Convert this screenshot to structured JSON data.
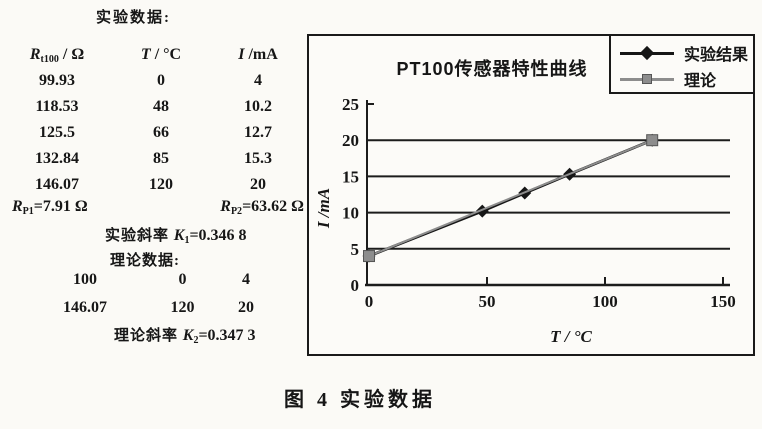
{
  "left_panel": {
    "heading": "实验数据:",
    "table": {
      "col1": {
        "base": "R",
        "sub": "t100",
        "suffix": " / Ω"
      },
      "col2": {
        "base": "T",
        "suffix": " / °C"
      },
      "col3": {
        "base": "I",
        "suffix": " /mA"
      },
      "rows": [
        [
          "99.93",
          "0",
          "4"
        ],
        [
          "118.53",
          "48",
          "10.2"
        ],
        [
          "125.5",
          "66",
          "12.7"
        ],
        [
          "132.84",
          "85",
          "15.3"
        ],
        [
          "146.07",
          "120",
          "20"
        ]
      ]
    },
    "rp1": {
      "base": "R",
      "sub": "P1",
      "value": "=7.91 Ω"
    },
    "rp2": {
      "base": "R",
      "sub": "P2",
      "value": "=63.62  Ω"
    },
    "exp_slope": {
      "label": "实验斜率",
      "k": "K",
      "sub": "1",
      "value": "=0.346 8"
    },
    "theory_heading": "理论数据:",
    "theory_rows": [
      [
        "100",
        "0",
        "4"
      ],
      [
        "146.07",
        "120",
        "20"
      ]
    ],
    "theory_slope": {
      "label": "理论斜率",
      "k": "K",
      "sub": "2",
      "value": "=0.347 3"
    }
  },
  "chart_data": {
    "type": "line",
    "title": "PT100传感器特性曲线",
    "xlabel": "T / °C",
    "ylabel": "I /mA",
    "xlim": [
      0,
      150
    ],
    "ylim": [
      0,
      25
    ],
    "xticks": [
      0,
      50,
      100,
      150
    ],
    "yticks": [
      0,
      5,
      10,
      15,
      20,
      25
    ],
    "grid": "horizontal-only",
    "legend_position": "top-right",
    "series": [
      {
        "name": "实验结果",
        "marker": "diamond",
        "color": "#161616",
        "x": [
          0,
          48,
          66,
          85,
          120
        ],
        "y": [
          4,
          10.2,
          12.7,
          15.3,
          20
        ]
      },
      {
        "name": "理论",
        "marker": "square",
        "color": "#8d8d8d",
        "x": [
          0,
          120
        ],
        "y": [
          4,
          20
        ]
      }
    ]
  },
  "caption": "图 4  实验数据"
}
